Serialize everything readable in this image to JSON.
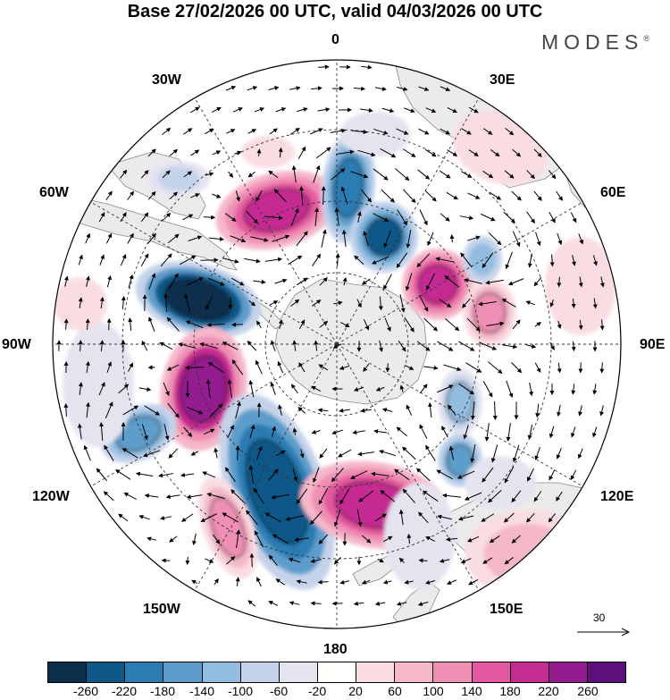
{
  "header": {
    "title": "Base 27/02/2026 00 UTC, valid 04/03/2026 00 UTC",
    "brand": "MODES",
    "brand_mark": "®"
  },
  "map": {
    "projection": "south polar stereographic",
    "longitude_labels": {
      "lon_0": "0",
      "lon_30e": "30E",
      "lon_60e": "60E",
      "lon_90e": "90E",
      "lon_120e": "120E",
      "lon_150e": "150E",
      "lon_180": "180",
      "lon_150w": "150W",
      "lon_120w": "120W",
      "lon_90w": "90W",
      "lon_60w": "60W",
      "lon_30w": "30W"
    },
    "land_color": "#ebebeb",
    "ocean_color": "#ffffff"
  },
  "reference_vector": {
    "value": "30"
  },
  "colorbar": {
    "colors": [
      "#0d2f4e",
      "#0e5888",
      "#2a7cb3",
      "#5d9dcb",
      "#93bde0",
      "#c5d3ea",
      "#e4e4f1",
      "#ffffff",
      "#f9dde2",
      "#f5b8c9",
      "#ef8fb4",
      "#e4589f",
      "#c52c92",
      "#931b8e",
      "#5d0f7c"
    ],
    "ticks": {
      "t_m260": "-260",
      "t_m220": "-220",
      "t_m180": "-180",
      "t_m140": "-140",
      "t_m100": "-100",
      "t_m60": "-60",
      "t_m20": "-20",
      "t_p20": "20",
      "t_p60": "60",
      "t_p100": "100",
      "t_p140": "140",
      "t_p180": "180",
      "t_p220": "220",
      "t_p260": "260"
    }
  }
}
